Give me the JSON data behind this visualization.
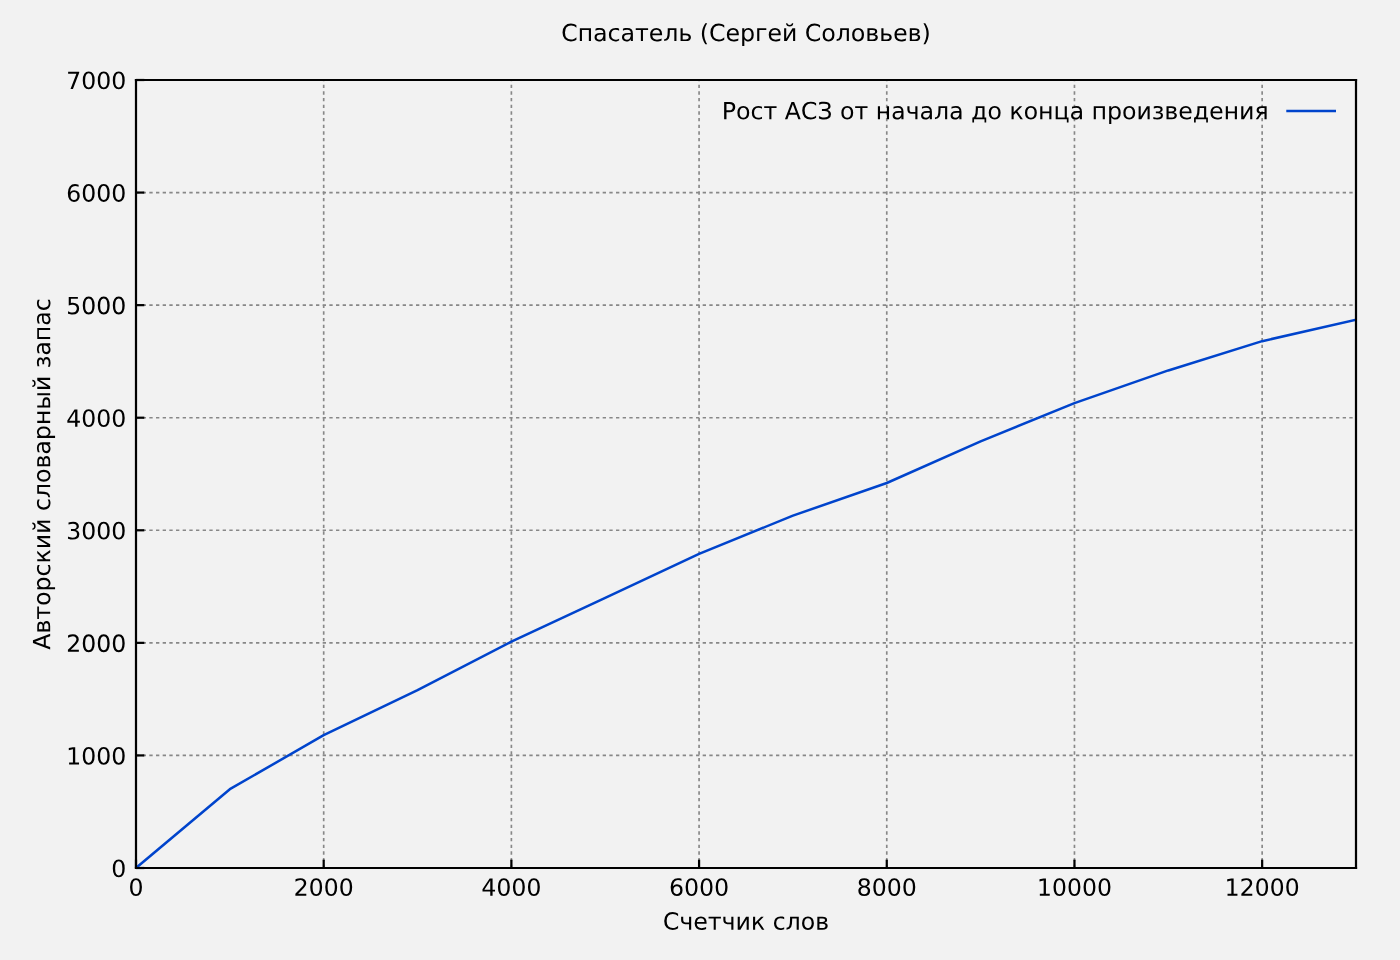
{
  "chart_data": {
    "type": "line",
    "title": "Спасатель (Сергей Соловьев)",
    "xlabel": "Счетчик слов",
    "ylabel": "Авторский словарный запас",
    "x": [
      0,
      1000,
      2000,
      3000,
      4000,
      5000,
      6000,
      7000,
      8000,
      9000,
      10000,
      11000,
      12000,
      13000
    ],
    "series": [
      {
        "name": "Рост АСЗ от начала до конца произведения",
        "color": "#0044cc",
        "values": [
          0,
          700,
          1180,
          1580,
          2010,
          2400,
          2790,
          3130,
          3420,
          3790,
          4130,
          4420,
          4680,
          4870
        ]
      }
    ],
    "xlim": [
      0,
      13000
    ],
    "ylim": [
      0,
      7000
    ],
    "xticks": [
      0,
      2000,
      4000,
      6000,
      8000,
      10000,
      12000
    ],
    "yticks": [
      0,
      1000,
      2000,
      3000,
      4000,
      5000,
      6000,
      7000
    ],
    "grid": true,
    "legend": "top right",
    "line_style": "solid",
    "marker": "none"
  }
}
